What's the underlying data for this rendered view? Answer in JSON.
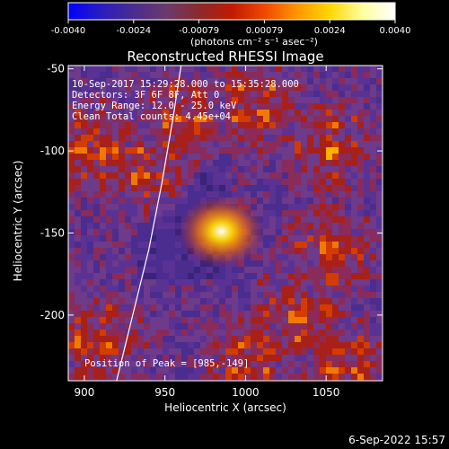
{
  "colorbar": {
    "ticks": [
      "-0.0040",
      "-0.0024",
      "-0.00079",
      "0.00079",
      "0.0024",
      "0.0040"
    ],
    "unit_label": "(photons cm⁻² s⁻¹ asec⁻²)",
    "colormap": [
      "#0000ff",
      "#2a1dbe",
      "#4b2c8f",
      "#6a3a6c",
      "#8a2b2b",
      "#c01a00",
      "#f04800",
      "#ff9600",
      "#ffd700",
      "#ffffa0",
      "#ffffff"
    ]
  },
  "chart_data": {
    "type": "heatmap",
    "title": "Reconstructed RHESSI Image",
    "xlabel": "Heliocentric X (arcsec)",
    "ylabel": "Heliocentric Y (arcsec)",
    "xlim": [
      890,
      1085
    ],
    "ylim": [
      -240,
      -48
    ],
    "x_ticks": [
      900,
      950,
      1000,
      1050
    ],
    "y_ticks": [
      -50,
      -100,
      -150,
      -200
    ],
    "value_range": [
      -0.004,
      0.004
    ],
    "grid": false,
    "info": [
      "10-Sep-2017 15:29:28.000 to 15:35:28.000",
      "Detectors: 3F 6F 8F, Att 0",
      "Energy Range: 12.0 - 25.0 keV",
      "Clean    Total counts: 4.45e+04"
    ],
    "peak_label": "Position of Peak = [985,-149]",
    "peak": [
      985,
      -149
    ],
    "limb_points": [
      [
        920,
        -240
      ],
      [
        930,
        -200
      ],
      [
        940,
        -160
      ],
      [
        948,
        -120
      ],
      [
        955,
        -80
      ],
      [
        960,
        -48
      ]
    ]
  },
  "footer": {
    "timestamp": "6-Sep-2022 15:57"
  }
}
